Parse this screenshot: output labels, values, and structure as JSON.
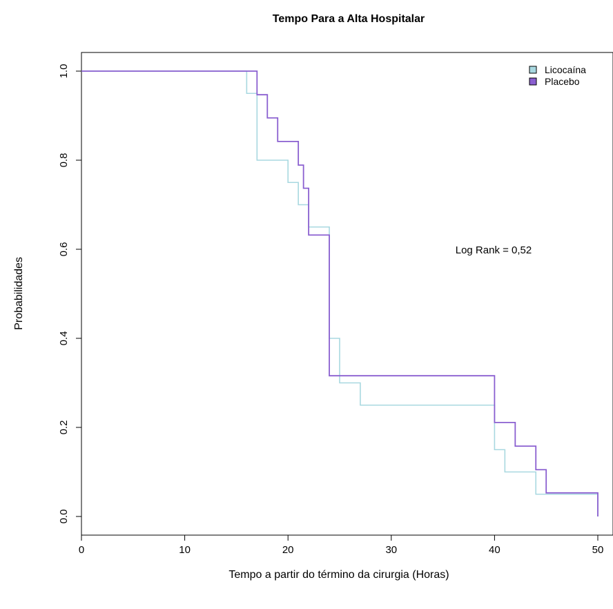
{
  "chart_data": {
    "type": "line",
    "step": true,
    "title": "Tempo Para a Alta Hospitalar",
    "xlabel": "Tempo a partir do término da cirurgia (Horas)",
    "ylabel": "Probabilidades",
    "xlim": [
      0,
      50
    ],
    "ylim": [
      0,
      1
    ],
    "x_ticks": [
      0,
      10,
      20,
      30,
      40,
      50
    ],
    "x_tick_labels": [
      "0",
      "10",
      "20",
      "30",
      "40",
      "50"
    ],
    "y_ticks": [
      0,
      0.2,
      0.4,
      0.6,
      0.8,
      1.0
    ],
    "y_tick_labels": [
      "0.0",
      "0.2",
      "0.4",
      "0.6",
      "0.8",
      "1.0"
    ],
    "grid": false,
    "legend_position": "top-right",
    "annotation": "Log Rank = 0,52",
    "series": [
      {
        "name": "Licocaína",
        "color": "#a8d8e0",
        "x": [
          0,
          16,
          17,
          20,
          21,
          22,
          24,
          25,
          27,
          40,
          41,
          44,
          50
        ],
        "y": [
          1.0,
          0.95,
          0.8,
          0.75,
          0.7,
          0.65,
          0.4,
          0.3,
          0.25,
          0.15,
          0.1,
          0.05,
          0.0
        ]
      },
      {
        "name": "Placebo",
        "color": "#8a5fd0",
        "x": [
          0,
          17,
          18,
          19,
          21,
          21.5,
          22,
          24,
          40,
          42,
          44,
          45,
          50
        ],
        "y": [
          1.0,
          0.947,
          0.895,
          0.842,
          0.789,
          0.737,
          0.632,
          0.316,
          0.211,
          0.158,
          0.105,
          0.053,
          0.0
        ]
      }
    ]
  }
}
